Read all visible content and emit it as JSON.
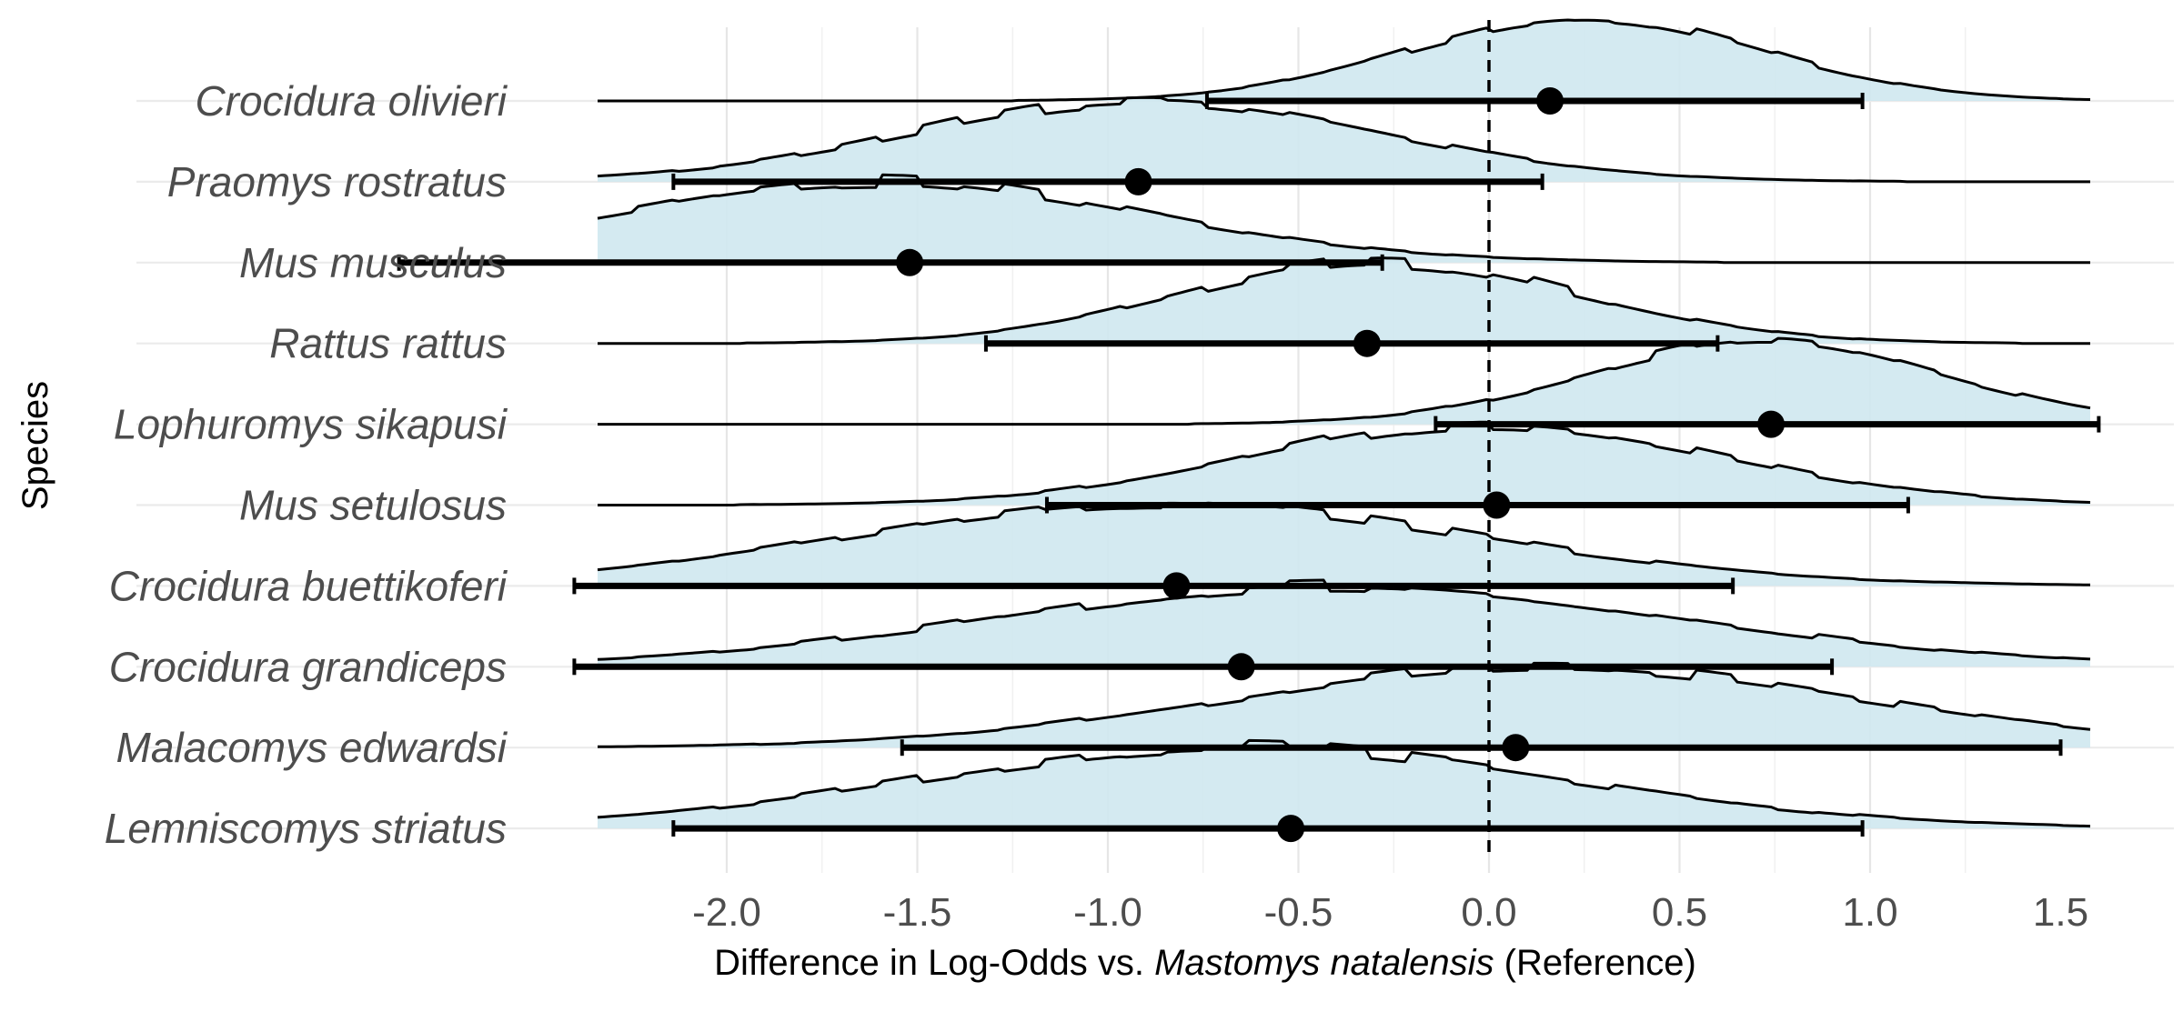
{
  "chart_data": {
    "type": "ridgeline",
    "ylabel": "Species",
    "xlabel": {
      "prefix": "Difference in Log-Odds vs. ",
      "species": "Mastomys natalensis",
      "suffix": " (Reference)"
    },
    "xlim": [
      -4.7,
      3.1
    ],
    "x_ticks": [
      -2.0,
      -1.5,
      -1.0,
      -0.5,
      0.0,
      0.5,
      1.0,
      1.5,
      2.0
    ],
    "x_tick_labels": [
      "-2.0",
      "-1.5",
      "-1.0",
      "-0.5",
      "0.0",
      "0.5",
      "1.0",
      "1.5",
      "2.0"
    ],
    "reference_line": 0,
    "fill_color": "#cfe8ef",
    "species": [
      {
        "name": "Crocidura olivieri",
        "estimate": 0.16,
        "ci": [
          -0.74,
          0.98
        ],
        "peak": 0.25
      },
      {
        "name": "Praomys rostratus",
        "estimate": -0.92,
        "ci": [
          -2.14,
          0.14
        ],
        "peak": -0.9
      },
      {
        "name": "Mus musculus",
        "estimate": -1.52,
        "ci": [
          -2.86,
          -0.28
        ],
        "peak": -1.62
      },
      {
        "name": "Rattus rattus",
        "estimate": -0.32,
        "ci": [
          -1.32,
          0.6
        ],
        "peak": -0.28
      },
      {
        "name": "Lophuromys sikapusi",
        "estimate": 0.74,
        "ci": [
          -0.14,
          1.6
        ],
        "peak": 0.72
      },
      {
        "name": "Mus setulosus",
        "estimate": 0.02,
        "ci": [
          -1.16,
          1.1
        ],
        "peak": 0.0
      },
      {
        "name": "Crocidura buettikoferi",
        "estimate": -0.82,
        "ci": [
          -2.4,
          0.64
        ],
        "peak": -0.85
      },
      {
        "name": "Crocidura grandiceps",
        "estimate": -0.65,
        "ci": [
          -2.4,
          0.9
        ],
        "peak": -0.4
      },
      {
        "name": "Malacomys edwardsi",
        "estimate": 0.07,
        "ci": [
          -1.54,
          1.5
        ],
        "peak": 0.15
      },
      {
        "name": "Lemniscomys striatus",
        "estimate": -0.52,
        "ci": [
          -2.14,
          0.98
        ],
        "peak": -0.65
      }
    ]
  }
}
